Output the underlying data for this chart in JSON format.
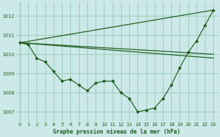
{
  "title": "Graphe pression niveau de la mer (hPa)",
  "background_color": "#cce8e8",
  "grid_color": "#99ccbb",
  "line_color": "#1a5c1a",
  "marker_color": "#1a5c1a",
  "xlim": [
    -0.5,
    23.5
  ],
  "ylim": [
    1006.5,
    1012.7
  ],
  "yticks": [
    1007,
    1008,
    1009,
    1010,
    1011,
    1012
  ],
  "xticks": [
    0,
    1,
    2,
    3,
    4,
    5,
    6,
    7,
    8,
    9,
    10,
    11,
    12,
    13,
    14,
    15,
    16,
    17,
    18,
    19,
    20,
    21,
    22,
    23
  ],
  "main_x": [
    0,
    1,
    2,
    3,
    4,
    5,
    6,
    7,
    8,
    9,
    10,
    11,
    12,
    13,
    14,
    15,
    16,
    17,
    18,
    19,
    20,
    21,
    22,
    23
  ],
  "main_y": [
    1010.6,
    1010.5,
    1009.8,
    1009.6,
    1009.1,
    1008.6,
    1008.7,
    1008.4,
    1008.1,
    1008.5,
    1008.6,
    1008.6,
    1008.0,
    1007.7,
    1007.0,
    1007.1,
    1007.2,
    1007.7,
    1008.4,
    1009.3,
    1010.1,
    1010.7,
    1011.5,
    1012.3
  ],
  "fan_lines": [
    {
      "x": [
        0,
        23
      ],
      "y": [
        1010.6,
        1012.3
      ]
    },
    {
      "x": [
        0,
        23
      ],
      "y": [
        1010.6,
        1010.0
      ]
    },
    {
      "x": [
        0,
        23
      ],
      "y": [
        1010.6,
        1009.8
      ]
    }
  ]
}
